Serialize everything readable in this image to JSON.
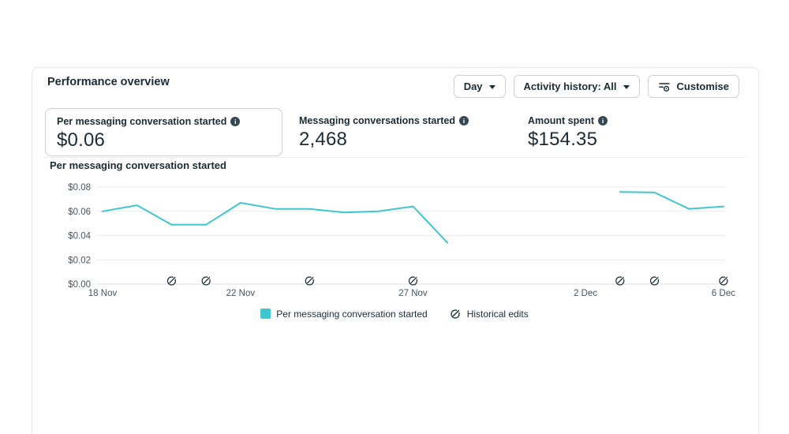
{
  "panel": {
    "title": "Performance overview"
  },
  "toolbar": {
    "day": {
      "label": "Day"
    },
    "activity": {
      "label": "Activity history: All"
    },
    "customise": {
      "label": "Customise"
    }
  },
  "metrics": [
    {
      "label": "Per messaging conversation started",
      "value": "$0.06",
      "selected": true
    },
    {
      "label": "Messaging conversations started",
      "value": "2,468",
      "selected": false
    },
    {
      "label": "Amount spent",
      "value": "$154.35",
      "selected": false
    }
  ],
  "chart_section": {
    "title": "Per messaging conversation started"
  },
  "legend": {
    "series_label": "Per messaging conversation started",
    "edits_label": "Historical edits"
  },
  "colors": {
    "accent_teal": "#3fc6ce",
    "text_dark": "#1c2b33",
    "text_muted": "#465660",
    "gridline": "#e8eaed",
    "axis_line": "#dcdfe3",
    "button_border": "#ced0d4"
  },
  "chart_data": {
    "type": "line",
    "title": "Per messaging conversation started",
    "x": [
      "18 Nov",
      "19 Nov",
      "20 Nov",
      "21 Nov",
      "22 Nov",
      "23 Nov",
      "24 Nov",
      "25 Nov",
      "26 Nov",
      "27 Nov",
      "28 Nov",
      "29 Nov",
      "30 Nov",
      "1 Dec",
      "2 Dec",
      "3 Dec",
      "4 Dec",
      "5 Dec",
      "6 Dec"
    ],
    "series": [
      {
        "name": "Per messaging conversation started",
        "values": [
          0.06,
          0.065,
          0.049,
          0.049,
          0.067,
          0.062,
          0.062,
          0.059,
          0.06,
          0.064,
          0.034,
          null,
          null,
          null,
          null,
          0.076,
          0.0755,
          0.062,
          0.064
        ]
      }
    ],
    "ylim": [
      0,
      0.08
    ],
    "y_ticks": [
      {
        "label": "$0.00",
        "value": 0.0
      },
      {
        "label": "$0.02",
        "value": 0.02
      },
      {
        "label": "$0.04",
        "value": 0.04
      },
      {
        "label": "$0.06",
        "value": 0.06
      },
      {
        "label": "$0.08",
        "value": 0.08
      }
    ],
    "x_ticks": [
      {
        "label": "18 Nov",
        "day": 0
      },
      {
        "label": "22 Nov",
        "day": 4
      },
      {
        "label": "27 Nov",
        "day": 9
      },
      {
        "label": "2 Dec",
        "day": 14
      },
      {
        "label": "6 Dec",
        "day": 18
      }
    ],
    "historical_edit_days": [
      2,
      3,
      6,
      9,
      15,
      16,
      18
    ],
    "grid": true,
    "legend_position": "bottom",
    "line_color": "#3fc6ce"
  }
}
